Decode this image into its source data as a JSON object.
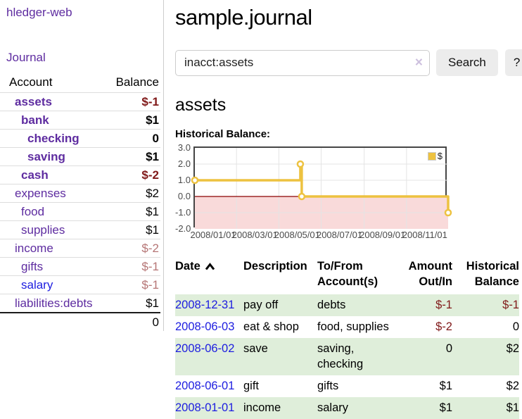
{
  "sidebar": {
    "brand": "hledger-web",
    "nav": {
      "journal": "Journal"
    },
    "header": {
      "account": "Account",
      "balance": "Balance"
    },
    "rows": [
      {
        "name": "assets",
        "balance": "$-1"
      },
      {
        "name": "bank",
        "balance": "$1"
      },
      {
        "name": "checking",
        "balance": "0"
      },
      {
        "name": "saving",
        "balance": "$1"
      },
      {
        "name": "cash",
        "balance": "$-2"
      },
      {
        "name": "expenses",
        "balance": "$2"
      },
      {
        "name": "food",
        "balance": "$1"
      },
      {
        "name": "supplies",
        "balance": "$1"
      },
      {
        "name": "income",
        "balance": "$-2"
      },
      {
        "name": "gifts",
        "balance": "$-1"
      },
      {
        "name": "salary",
        "balance": "$-1"
      },
      {
        "name": "liabilities:debts",
        "balance": "$1"
      }
    ],
    "total": "0"
  },
  "main": {
    "title": "sample.journal",
    "search": {
      "value": "inacct:assets",
      "clear_glyph": "×",
      "button_label": "Search",
      "help_label": "?"
    },
    "account_heading": "assets",
    "chart_heading": "Historical Balance:"
  },
  "chart_data": {
    "type": "line",
    "title": "Historical Balance",
    "interpolation": "step-after",
    "x_range": [
      "2008-01-01",
      "2008-12-31"
    ],
    "ylim": [
      -2,
      3
    ],
    "grid": true,
    "legend_position": "top-right",
    "y_ticks": [
      {
        "v": 3,
        "label": "3.0"
      },
      {
        "v": 2,
        "label": "2.0"
      },
      {
        "v": 1,
        "label": "1.0"
      },
      {
        "v": 0,
        "label": "0.0"
      },
      {
        "v": -1,
        "label": "-1.0"
      },
      {
        "v": -2,
        "label": "-2.0"
      }
    ],
    "x_ticks": [
      {
        "date": "2008-01-01",
        "label": "2008/01/01"
      },
      {
        "date": "2008-03-01",
        "label": "2008/03/01"
      },
      {
        "date": "2008-05-01",
        "label": "2008/05/01"
      },
      {
        "date": "2008-07-01",
        "label": "2008/07/01"
      },
      {
        "date": "2008-09-01",
        "label": "2008/09/01"
      },
      {
        "date": "2008-11-01",
        "label": "2008/11/01"
      }
    ],
    "series": [
      {
        "name": "$",
        "color": "#edc240",
        "points": [
          [
            "2008-01-01",
            1
          ],
          [
            "2008-06-01",
            2
          ],
          [
            "2008-06-03",
            0
          ],
          [
            "2008-12-31",
            -1
          ]
        ]
      }
    ],
    "negative_region_color": "#f9dada",
    "zero_line_color": "#8b0000"
  },
  "register": {
    "headers": [
      {
        "label": "Date"
      },
      {
        "label": "Description"
      },
      {
        "label": "To/From Account(s)"
      },
      {
        "label": "Amount Out/In"
      },
      {
        "label": "Historical Balance"
      }
    ],
    "rows": [
      {
        "date": "2008-12-31",
        "description": "pay off",
        "accounts": "debts",
        "amount": "$-1",
        "balance": "$-1"
      },
      {
        "date": "2008-06-03",
        "description": "eat & shop",
        "accounts": "food, supplies",
        "amount": "$-2",
        "balance": "0"
      },
      {
        "date": "2008-06-02",
        "description": "save",
        "accounts": "saving, checking",
        "amount": "0",
        "balance": "$2"
      },
      {
        "date": "2008-06-01",
        "description": "gift",
        "accounts": "gifts",
        "amount": "$1",
        "balance": "$2"
      },
      {
        "date": "2008-01-01",
        "description": "income",
        "accounts": "salary",
        "amount": "$1",
        "balance": "$1"
      }
    ]
  },
  "colors": {
    "accent_purple": "#5e2ca0",
    "link_blue": "#1d1de0",
    "negative_red": "#801919",
    "muted_negative": "#b57575",
    "series_gold": "#edc240",
    "row_green": "#dfeeda"
  }
}
